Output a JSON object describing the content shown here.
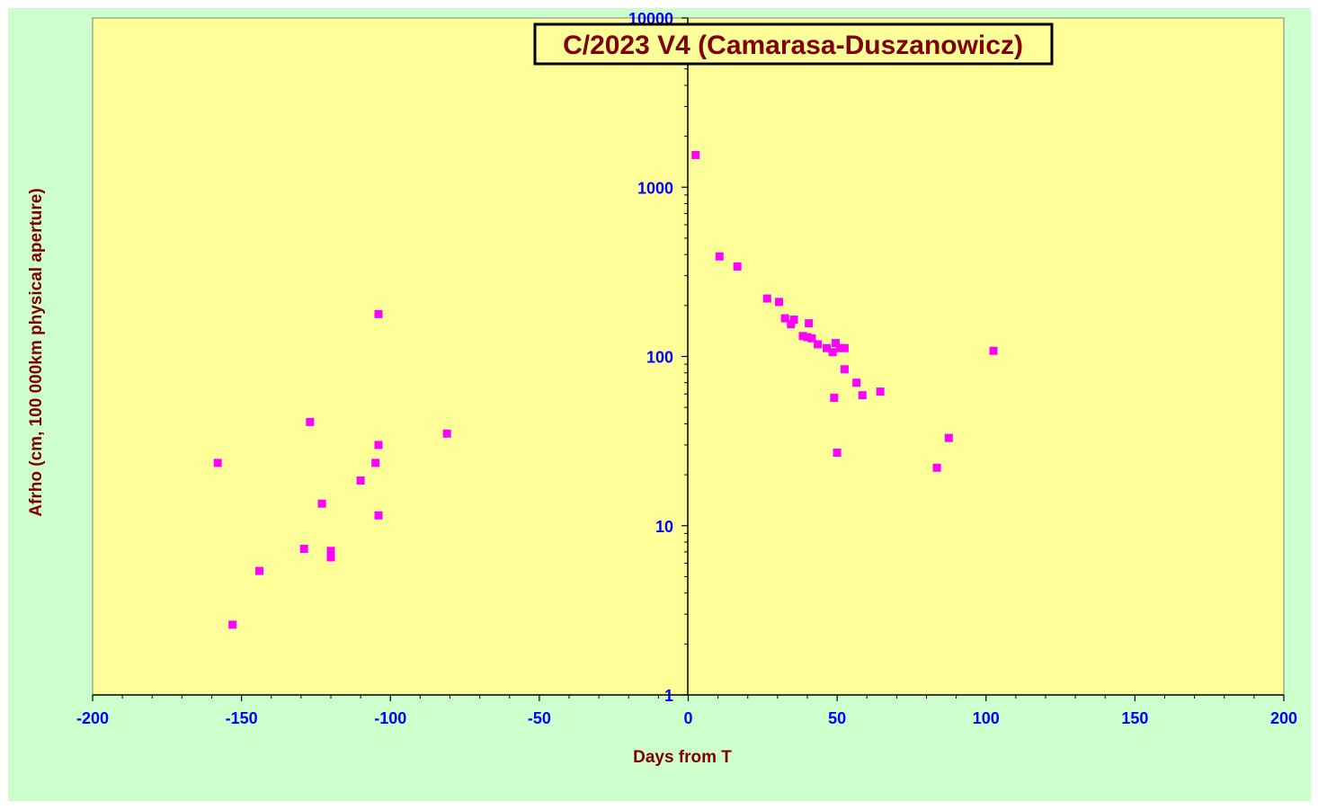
{
  "colors": {
    "frame_background": "#ccffcc",
    "plot_background": "#ffff99",
    "marker": "#ff00ff",
    "tick_label": "#0000ff",
    "axis_title": "#800000",
    "title_text": "#800000",
    "title_box_fill": "#ffff99",
    "title_box_border": "#000000",
    "axis_line": "#000000"
  },
  "chart_data": {
    "type": "scatter",
    "title": "C/2023 V4 (Camarasa-Duszanowicz)",
    "xlabel": "Days from  T",
    "ylabel": "Afrho (cm, 100 000km physical  aperture)",
    "xlim": [
      -200,
      200
    ],
    "ylim": [
      1,
      10000
    ],
    "yscale": "log",
    "xticks": [
      -200,
      -150,
      -100,
      -50,
      0,
      50,
      100,
      150,
      200
    ],
    "xtick_labels": [
      "-200",
      "-150",
      "-100",
      "-50",
      "0",
      "50",
      "100",
      "150",
      "200"
    ],
    "yticks": [
      1,
      10,
      100,
      1000,
      10000
    ],
    "ytick_labels": [
      "1",
      "10",
      "100",
      "1000",
      "10000"
    ],
    "grid": false,
    "legend": "none",
    "marker": "square",
    "series": [
      {
        "points": [
          [
            -158,
            23.5
          ],
          [
            -153,
            2.6
          ],
          [
            -144,
            5.4
          ],
          [
            -129,
            7.3
          ],
          [
            -127,
            41
          ],
          [
            -123,
            13.5
          ],
          [
            -120,
            7.1
          ],
          [
            -120,
            6.5
          ],
          [
            -110,
            18.5
          ],
          [
            -105,
            23.5
          ],
          [
            -104,
            178
          ],
          [
            -104,
            30
          ],
          [
            -104,
            11.5
          ],
          [
            -81,
            35
          ],
          [
            2.5,
            1550
          ],
          [
            10.5,
            390
          ],
          [
            16.5,
            340
          ],
          [
            26.5,
            220
          ],
          [
            30.5,
            210
          ],
          [
            32.5,
            168
          ],
          [
            34.5,
            155
          ],
          [
            35.5,
            165
          ],
          [
            38.5,
            132
          ],
          [
            40,
            130
          ],
          [
            40.5,
            157
          ],
          [
            41.5,
            128
          ],
          [
            43.5,
            118
          ],
          [
            46.5,
            112
          ],
          [
            48.5,
            106
          ],
          [
            49,
            57
          ],
          [
            49.5,
            120
          ],
          [
            50,
            27
          ],
          [
            51,
            112
          ],
          [
            52.5,
            112
          ],
          [
            52.5,
            84
          ],
          [
            56.5,
            70
          ],
          [
            58.5,
            59
          ],
          [
            64.5,
            62
          ],
          [
            83.5,
            22
          ],
          [
            87.5,
            33
          ],
          [
            102.5,
            108
          ]
        ]
      }
    ]
  }
}
